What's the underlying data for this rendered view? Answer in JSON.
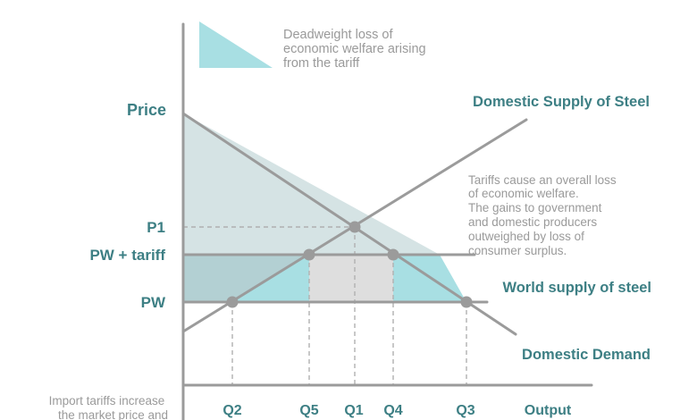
{
  "legend": {
    "lines": [
      "Deadweight loss of",
      "economic welfare arising",
      "from the tariff"
    ],
    "swatch_color": "#a8dfe3"
  },
  "labels": {
    "price_axis": "Price",
    "output_axis": "Output",
    "p1": "P1",
    "pw_tariff": "PW + tariff",
    "pw": "PW",
    "domestic_supply": "Domestic Supply of Steel",
    "world_supply": "World supply of steel",
    "domestic_demand": "Domestic Demand"
  },
  "quantities": [
    "Q2",
    "Q5",
    "Q1",
    "Q4",
    "Q3"
  ],
  "note": {
    "lines": [
      "Tariffs cause an overall loss",
      "of economic welfare.",
      "The gains to government",
      "and domestic producers",
      "outweighed by loss of",
      "consumer surplus."
    ]
  },
  "caption": {
    "lines": [
      "Import tariffs increase",
      "the market price and"
    ]
  },
  "colors": {
    "teal_text": "#3d7f84",
    "grey_text": "#9a9a9a",
    "line": "#9b9b9b",
    "consumer_surplus": "#d5e3e4",
    "producer_gain": "#b3d0d3",
    "deadweight": "#a8dfe3",
    "tariff_revenue": "#dedede"
  }
}
